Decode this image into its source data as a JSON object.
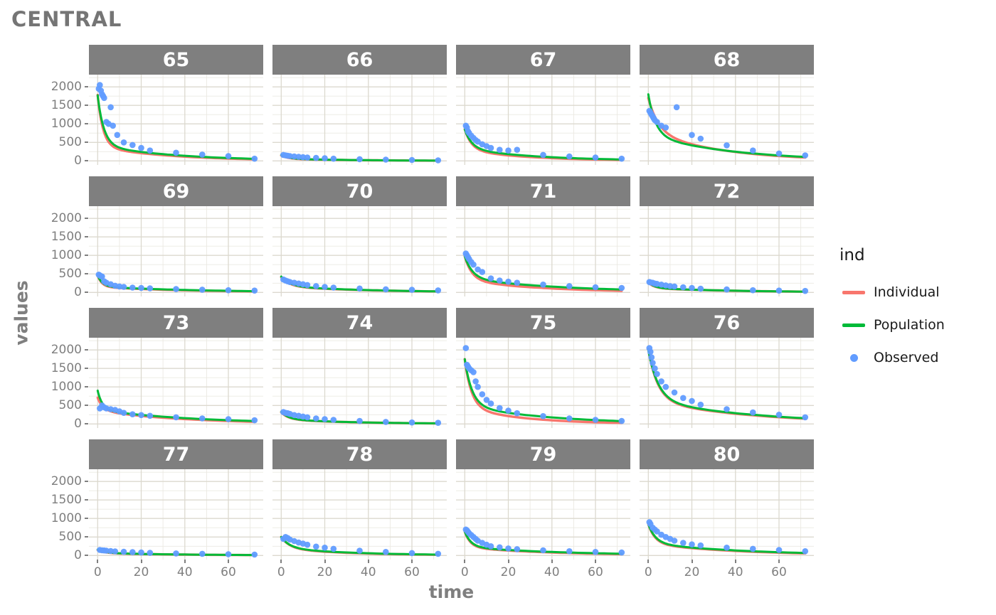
{
  "title": "CENTRAL",
  "axes": {
    "x_label": "time",
    "y_label": "values",
    "x_ticks": [
      0,
      20,
      40,
      60
    ],
    "y_ticks": [
      0,
      500,
      1000,
      1500,
      2000
    ]
  },
  "legend": {
    "title": "ind",
    "position": "right",
    "entries": [
      {
        "label": "Individual",
        "type": "line",
        "color": "#F8766D"
      },
      {
        "label": "Population",
        "type": "line",
        "color": "#00BA38"
      },
      {
        "label": "Observed",
        "type": "point",
        "color": "#619CFF"
      }
    ]
  },
  "colors": {
    "strip_bg": "#7F7F7F",
    "strip_text": "#FFFFFF",
    "panel_bg": "#FFFFFF",
    "grid_major": "#DCD9CF",
    "grid_minor": "#EBE9E2",
    "axis_text": "#7F7F7F",
    "title_text": "#757575",
    "legend_text": "#1A1A1A",
    "tick_mark": "#7F7F7F",
    "individual": "#F8766D",
    "population": "#00BA38",
    "observed": "#619CFF"
  },
  "chart_data": {
    "type": "line",
    "subtype": "faceted line + scatter (pharmacokinetic fits)",
    "title": "CENTRAL",
    "xlabel": "time",
    "ylabel": "values",
    "xlim": [
      -4,
      76
    ],
    "ylim": [
      -110,
      2330
    ],
    "x_ticks": [
      0,
      20,
      40,
      60
    ],
    "y_ticks": [
      0,
      500,
      1000,
      1500,
      2000
    ],
    "x_minor": [
      10,
      30,
      50,
      70
    ],
    "y_minor": [
      250,
      750,
      1250,
      1750,
      2250
    ],
    "grid": true,
    "legend_position": "right",
    "fit_model": "y(t) = A*exp(-kf*t) + B*exp(-ks*t)",
    "facets": [
      {
        "label": "65",
        "individual_fit": {
          "A": 1400,
          "kf": 0.4,
          "B": 380,
          "ks": 0.03
        },
        "population_fit": {
          "A": 1350,
          "kf": 0.35,
          "B": 420,
          "ks": 0.028
        },
        "observed": {
          "x": [
            0.5,
            1,
            1.5,
            2,
            2.5,
            3,
            4,
            5,
            6,
            7,
            9,
            12,
            16,
            20,
            24,
            36,
            48,
            60,
            72
          ],
          "y": [
            1950,
            2050,
            1900,
            1800,
            1750,
            1700,
            1050,
            1000,
            1450,
            950,
            700,
            500,
            430,
            350,
            280,
            220,
            170,
            130,
            60
          ]
        }
      },
      {
        "label": "66",
        "individual_fit": {
          "A": 90,
          "kf": 0.3,
          "B": 55,
          "ks": 0.03
        },
        "population_fit": {
          "A": 100,
          "kf": 0.3,
          "B": 60,
          "ks": 0.03
        },
        "observed": {
          "x": [
            1,
            2,
            3,
            4,
            6,
            8,
            10,
            12,
            16,
            20,
            24,
            36,
            48,
            60,
            72
          ],
          "y": [
            160,
            150,
            140,
            130,
            120,
            110,
            100,
            90,
            80,
            70,
            60,
            45,
            35,
            25,
            15
          ]
        }
      },
      {
        "label": "67",
        "individual_fit": {
          "A": 560,
          "kf": 0.32,
          "B": 300,
          "ks": 0.035
        },
        "population_fit": {
          "A": 520,
          "kf": 0.3,
          "B": 330,
          "ks": 0.03
        },
        "observed": {
          "x": [
            0.5,
            1,
            1.5,
            2,
            3,
            4,
            5,
            6,
            8,
            10,
            12,
            16,
            20,
            24,
            36,
            48,
            60,
            72
          ],
          "y": [
            950,
            900,
            800,
            750,
            680,
            620,
            560,
            520,
            450,
            400,
            350,
            300,
            280,
            300,
            160,
            120,
            90,
            60
          ]
        }
      },
      {
        "label": "68",
        "individual_fit": {
          "A": 900,
          "kf": 0.22,
          "B": 800,
          "ks": 0.03
        },
        "population_fit": {
          "A": 1100,
          "kf": 0.3,
          "B": 700,
          "ks": 0.026
        },
        "observed": {
          "x": [
            0.5,
            1,
            1.5,
            2,
            2.5,
            3,
            4,
            6,
            8,
            13,
            20,
            24,
            36,
            48,
            60,
            72
          ],
          "y": [
            1350,
            1300,
            1250,
            1200,
            1150,
            1100,
            1050,
            950,
            900,
            1450,
            700,
            600,
            420,
            280,
            200,
            150
          ]
        }
      },
      {
        "label": "69",
        "individual_fit": {
          "A": 310,
          "kf": 0.5,
          "B": 150,
          "ks": 0.024
        },
        "population_fit": {
          "A": 300,
          "kf": 0.45,
          "B": 160,
          "ks": 0.022
        },
        "observed": {
          "x": [
            0.5,
            1,
            1.5,
            2,
            3,
            4,
            6,
            8,
            10,
            12,
            16,
            20,
            24,
            36,
            48,
            60,
            72
          ],
          "y": [
            480,
            460,
            440,
            430,
            300,
            260,
            220,
            180,
            160,
            150,
            130,
            120,
            110,
            90,
            75,
            60,
            50
          ]
        }
      },
      {
        "label": "70",
        "individual_fit": {
          "A": 250,
          "kf": 0.25,
          "B": 160,
          "ks": 0.025
        },
        "population_fit": {
          "A": 260,
          "kf": 0.25,
          "B": 170,
          "ks": 0.025
        },
        "observed": {
          "x": [
            1,
            2,
            3,
            4,
            6,
            8,
            10,
            12,
            16,
            20,
            24,
            36,
            48,
            60,
            72
          ],
          "y": [
            350,
            320,
            300,
            280,
            260,
            240,
            220,
            200,
            170,
            150,
            130,
            105,
            85,
            70,
            55
          ]
        }
      },
      {
        "label": "71",
        "individual_fit": {
          "A": 650,
          "kf": 0.3,
          "B": 330,
          "ks": 0.028
        },
        "population_fit": {
          "A": 600,
          "kf": 0.28,
          "B": 380,
          "ks": 0.022
        },
        "observed": {
          "x": [
            0.5,
            1,
            1.5,
            2,
            3,
            4,
            6,
            8,
            12,
            16,
            20,
            24,
            36,
            48,
            60,
            72
          ],
          "y": [
            1050,
            1000,
            950,
            900,
            820,
            750,
            620,
            550,
            380,
            320,
            290,
            260,
            210,
            170,
            140,
            120
          ]
        }
      },
      {
        "label": "72",
        "individual_fit": {
          "A": 150,
          "kf": 0.35,
          "B": 115,
          "ks": 0.024
        },
        "population_fit": {
          "A": 160,
          "kf": 0.35,
          "B": 120,
          "ks": 0.024
        },
        "observed": {
          "x": [
            0.5,
            1,
            2,
            3,
            4,
            6,
            8,
            10,
            12,
            16,
            20,
            24,
            36,
            48,
            60,
            72
          ],
          "y": [
            280,
            270,
            260,
            240,
            230,
            210,
            190,
            170,
            160,
            140,
            120,
            100,
            80,
            60,
            50,
            40
          ]
        }
      },
      {
        "label": "73",
        "individual_fit": {
          "A": 350,
          "kf": 0.4,
          "B": 360,
          "ks": 0.025
        },
        "population_fit": {
          "A": 520,
          "kf": 0.45,
          "B": 380,
          "ks": 0.022
        },
        "observed": {
          "x": [
            1,
            2,
            3,
            4,
            6,
            8,
            10,
            12,
            16,
            20,
            24,
            36,
            48,
            60,
            72
          ],
          "y": [
            420,
            500,
            450,
            420,
            400,
            380,
            340,
            300,
            260,
            240,
            220,
            180,
            150,
            130,
            100
          ]
        }
      },
      {
        "label": "74",
        "individual_fit": {
          "A": 190,
          "kf": 0.3,
          "B": 125,
          "ks": 0.03
        },
        "population_fit": {
          "A": 200,
          "kf": 0.3,
          "B": 130,
          "ks": 0.03
        },
        "observed": {
          "x": [
            1,
            2,
            3,
            4,
            6,
            8,
            10,
            12,
            16,
            20,
            24,
            36,
            48,
            60,
            72
          ],
          "y": [
            320,
            300,
            290,
            270,
            240,
            220,
            200,
            180,
            150,
            130,
            110,
            80,
            55,
            40,
            30
          ]
        }
      },
      {
        "label": "75",
        "individual_fit": {
          "A": 1300,
          "kf": 0.32,
          "B": 450,
          "ks": 0.038
        },
        "population_fit": {
          "A": 1250,
          "kf": 0.3,
          "B": 500,
          "ks": 0.026
        },
        "observed": {
          "x": [
            0.5,
            1,
            1.5,
            2,
            3,
            4,
            5,
            6,
            8,
            10,
            12,
            16,
            20,
            24,
            36,
            48,
            60,
            72
          ],
          "y": [
            2050,
            1600,
            1550,
            1500,
            1450,
            1400,
            1150,
            1000,
            800,
            650,
            550,
            430,
            360,
            290,
            210,
            150,
            110,
            80
          ]
        }
      },
      {
        "label": "76",
        "individual_fit": {
          "A": 1380,
          "kf": 0.23,
          "B": 640,
          "ks": 0.021
        },
        "population_fit": {
          "A": 1350,
          "kf": 0.22,
          "B": 650,
          "ks": 0.02
        },
        "observed": {
          "x": [
            0.5,
            1,
            1.5,
            2,
            3,
            4,
            6,
            8,
            12,
            16,
            20,
            24,
            36,
            48,
            60,
            72
          ],
          "y": [
            2050,
            1950,
            1800,
            1650,
            1500,
            1350,
            1150,
            1000,
            850,
            700,
            620,
            520,
            400,
            310,
            250,
            180
          ]
        }
      },
      {
        "label": "77",
        "individual_fit": {
          "A": 85,
          "kf": 0.3,
          "B": 65,
          "ks": 0.025
        },
        "population_fit": {
          "A": 90,
          "kf": 0.3,
          "B": 70,
          "ks": 0.025
        },
        "observed": {
          "x": [
            1,
            2,
            3,
            4,
            6,
            8,
            12,
            16,
            20,
            24,
            36,
            48,
            60,
            72
          ],
          "y": [
            150,
            140,
            135,
            130,
            120,
            110,
            100,
            90,
            80,
            70,
            55,
            45,
            35,
            25
          ]
        }
      },
      {
        "label": "78",
        "individual_fit": {
          "A": 310,
          "kf": 0.25,
          "B": 190,
          "ks": 0.032
        },
        "population_fit": {
          "A": 300,
          "kf": 0.25,
          "B": 200,
          "ks": 0.03
        },
        "observed": {
          "x": [
            1,
            2,
            3,
            4,
            6,
            8,
            10,
            12,
            16,
            20,
            24,
            36,
            48,
            60,
            72
          ],
          "y": [
            450,
            500,
            470,
            430,
            390,
            350,
            320,
            290,
            240,
            210,
            180,
            130,
            95,
            65,
            45
          ]
        }
      },
      {
        "label": "79",
        "individual_fit": {
          "A": 430,
          "kf": 0.38,
          "B": 220,
          "ks": 0.025
        },
        "population_fit": {
          "A": 420,
          "kf": 0.35,
          "B": 230,
          "ks": 0.022
        },
        "observed": {
          "x": [
            0.5,
            1,
            1.5,
            2,
            3,
            4,
            5,
            6,
            8,
            10,
            12,
            16,
            20,
            24,
            36,
            48,
            60,
            72
          ],
          "y": [
            700,
            680,
            640,
            600,
            550,
            500,
            450,
            400,
            340,
            290,
            250,
            220,
            190,
            170,
            140,
            115,
            95,
            80
          ]
        }
      },
      {
        "label": "80",
        "individual_fit": {
          "A": 530,
          "kf": 0.32,
          "B": 320,
          "ks": 0.024
        },
        "population_fit": {
          "A": 520,
          "kf": 0.3,
          "B": 330,
          "ks": 0.022
        },
        "observed": {
          "x": [
            0.5,
            1,
            2,
            3,
            4,
            6,
            8,
            10,
            12,
            16,
            20,
            24,
            36,
            48,
            60,
            72
          ],
          "y": [
            900,
            850,
            750,
            700,
            650,
            560,
            500,
            450,
            400,
            340,
            300,
            270,
            210,
            180,
            150,
            115
          ]
        }
      }
    ]
  }
}
